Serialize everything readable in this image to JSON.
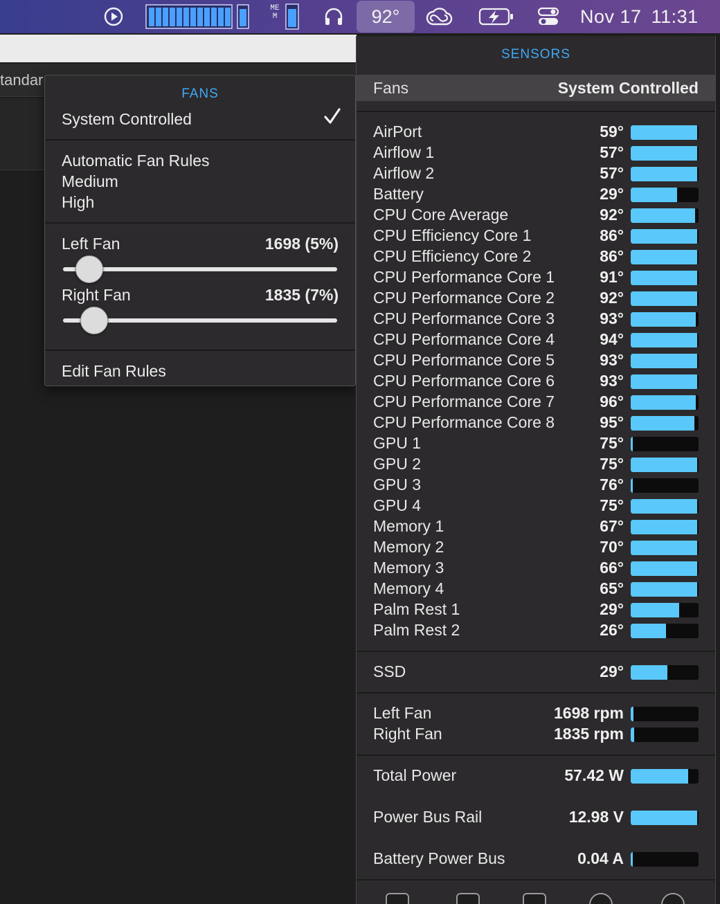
{
  "menubar": {
    "temp": "92°",
    "date": "Nov 17",
    "time": "11:31",
    "mem_label": "MEM",
    "icons": [
      "play-circle-icon",
      "cpu-history-icon",
      "memory-gauge-icon",
      "headphones-icon",
      "creative-cloud-icon",
      "battery-charging-icon",
      "control-center-icon"
    ]
  },
  "background_window": {
    "tab_label": "tandar"
  },
  "fans_menu": {
    "title": "FANS",
    "selected": "System Controlled",
    "rules": [
      "Automatic Fan Rules",
      "Medium",
      "High"
    ],
    "left_fan": {
      "label": "Left Fan",
      "value": "1698 (5%)",
      "percent": 5
    },
    "right_fan": {
      "label": "Right Fan",
      "value": "1835 (7%)",
      "percent": 7
    },
    "edit_label": "Edit Fan Rules"
  },
  "sensors": {
    "title": "SENSORS",
    "fans_header": {
      "label": "Fans",
      "value": "System Controlled"
    },
    "temperatures": [
      {
        "name": "AirPort",
        "value": "59°",
        "fill": 0.98
      },
      {
        "name": "Airflow 1",
        "value": "57°",
        "fill": 0.98
      },
      {
        "name": "Airflow 2",
        "value": "57°",
        "fill": 0.98
      },
      {
        "name": "Battery",
        "value": "29°",
        "fill": 0.68
      },
      {
        "name": "CPU Core Average",
        "value": "92°",
        "fill": 0.95
      },
      {
        "name": "CPU Efficiency Core 1",
        "value": "86°",
        "fill": 0.98
      },
      {
        "name": "CPU Efficiency Core 2",
        "value": "86°",
        "fill": 0.98
      },
      {
        "name": "CPU Performance Core 1",
        "value": "91°",
        "fill": 0.98
      },
      {
        "name": "CPU Performance Core 2",
        "value": "92°",
        "fill": 0.98
      },
      {
        "name": "CPU Performance Core 3",
        "value": "93°",
        "fill": 0.96
      },
      {
        "name": "CPU Performance Core 4",
        "value": "94°",
        "fill": 0.98
      },
      {
        "name": "CPU Performance Core 5",
        "value": "93°",
        "fill": 0.98
      },
      {
        "name": "CPU Performance Core 6",
        "value": "93°",
        "fill": 0.98
      },
      {
        "name": "CPU Performance Core 7",
        "value": "96°",
        "fill": 0.96
      },
      {
        "name": "CPU Performance Core 8",
        "value": "95°",
        "fill": 0.94
      },
      {
        "name": "GPU 1",
        "value": "75°",
        "fill": 0.02
      },
      {
        "name": "GPU 2",
        "value": "75°",
        "fill": 0.98
      },
      {
        "name": "GPU 3",
        "value": "76°",
        "fill": 0.02
      },
      {
        "name": "GPU 4",
        "value": "75°",
        "fill": 0.98
      },
      {
        "name": "Memory 1",
        "value": "67°",
        "fill": 0.98
      },
      {
        "name": "Memory 2",
        "value": "70°",
        "fill": 0.98
      },
      {
        "name": "Memory 3",
        "value": "66°",
        "fill": 0.98
      },
      {
        "name": "Memory 4",
        "value": "65°",
        "fill": 0.98
      },
      {
        "name": "Palm Rest 1",
        "value": "29°",
        "fill": 0.71
      },
      {
        "name": "Palm Rest 2",
        "value": "26°",
        "fill": 0.52
      }
    ],
    "ssd": {
      "name": "SSD",
      "value": "29°",
      "fill": 0.54
    },
    "fans": [
      {
        "name": "Left Fan",
        "value": "1698 rpm",
        "fill": 0.04
      },
      {
        "name": "Right Fan",
        "value": "1835 rpm",
        "fill": 0.05
      }
    ],
    "power": [
      {
        "name": "Total Power",
        "value": "57.42 W",
        "fill": 0.85
      },
      {
        "name": "Power Bus Rail",
        "value": "12.98 V",
        "fill": 0.98
      },
      {
        "name": "Battery Power Bus",
        "value": "0.04 A",
        "fill": 0.02
      }
    ],
    "footer_icons": [
      "activity-monitor-icon",
      "console-icon",
      "terminal-icon",
      "disk-utility-icon",
      "system-info-icon"
    ],
    "colors": {
      "accent": "#3fa9f5",
      "bar_fill": "#5ac8fa",
      "bar_bg": "#0c0c0c"
    }
  }
}
